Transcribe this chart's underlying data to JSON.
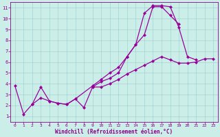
{
  "xlabel": "Windchill (Refroidissement éolien,°C)",
  "bg_color": "#cceee8",
  "grid_color": "#99cccc",
  "line_color": "#990099",
  "marker": "D",
  "markersize": 2.2,
  "linewidth": 0.9,
  "xlim": [
    -0.5,
    23.5
  ],
  "ylim": [
    0.5,
    11.5
  ],
  "xticks": [
    0,
    1,
    2,
    3,
    4,
    5,
    6,
    7,
    8,
    9,
    10,
    11,
    12,
    13,
    14,
    15,
    16,
    17,
    18,
    19,
    20,
    21,
    22,
    23
  ],
  "yticks": [
    1,
    2,
    3,
    4,
    5,
    6,
    7,
    8,
    9,
    10,
    11
  ],
  "series": [
    {
      "x": [
        0,
        1,
        2,
        3,
        4,
        5,
        6,
        7,
        8,
        9,
        10,
        11,
        12,
        13,
        14,
        15,
        16,
        17,
        18,
        19,
        20,
        21
      ],
      "y": [
        3.8,
        1.2,
        2.1,
        3.7,
        2.4,
        2.2,
        2.1,
        2.6,
        1.8,
        3.7,
        4.2,
        4.5,
        5.0,
        6.5,
        7.6,
        10.5,
        11.2,
        11.2,
        11.1,
        9.2,
        6.5,
        6.2
      ]
    },
    {
      "x": [
        2,
        3,
        4,
        5,
        6,
        7,
        9,
        10,
        11,
        12,
        13,
        14,
        15,
        16,
        17,
        18,
        19
      ],
      "y": [
        2.1,
        2.7,
        2.4,
        2.2,
        2.1,
        2.6,
        3.8,
        4.4,
        5.0,
        5.5,
        6.5,
        7.6,
        8.5,
        11.1,
        11.1,
        10.3,
        9.5
      ]
    },
    {
      "x": [
        9,
        10,
        11,
        12,
        13,
        14,
        15,
        16,
        17,
        18,
        19,
        20,
        21,
        22,
        23
      ],
      "y": [
        3.7,
        3.7,
        4.0,
        4.4,
        4.9,
        5.3,
        5.7,
        6.1,
        6.5,
        6.2,
        5.9,
        5.9,
        6.0,
        6.3,
        6.3
      ]
    }
  ]
}
